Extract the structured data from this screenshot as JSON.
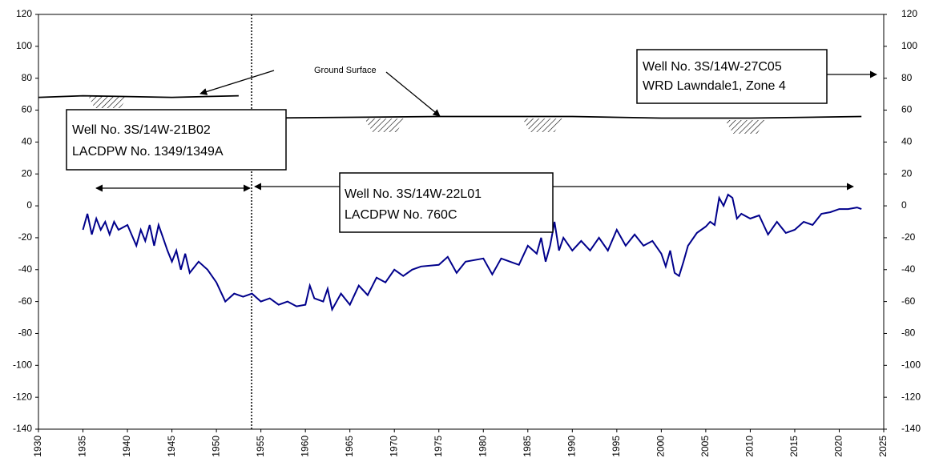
{
  "chart_data": {
    "type": "line",
    "xlim": [
      1930,
      2025
    ],
    "xticks": [
      1930,
      1935,
      1940,
      1945,
      1950,
      1955,
      1960,
      1965,
      1970,
      1975,
      1980,
      1985,
      1990,
      1995,
      2000,
      2005,
      2010,
      2015,
      2020,
      2025
    ],
    "ylim": [
      -140,
      120
    ],
    "yticks": [
      -140,
      -120,
      -100,
      -80,
      -60,
      -40,
      -20,
      0,
      20,
      40,
      60,
      80,
      100,
      120
    ],
    "y2lim": [
      -140,
      120
    ],
    "y2ticks": [
      -140,
      -120,
      -100,
      -80,
      -60,
      -40,
      -20,
      0,
      20,
      40,
      60,
      80,
      100,
      120
    ],
    "grid": false,
    "series": [
      {
        "color": "#00008b",
        "x": [
          1935,
          1935.5,
          1936,
          1936.5,
          1937,
          1937.5,
          1938,
          1938.5,
          1939,
          1940,
          1941,
          1941.5,
          1942,
          1942.5,
          1943,
          1943.5,
          1944,
          1944.5,
          1945,
          1945.5,
          1946,
          1946.5,
          1947,
          1948,
          1949,
          1950,
          1951,
          1952,
          1953,
          1954,
          1955,
          1956,
          1957,
          1958,
          1959,
          1960,
          1960.5,
          1961,
          1962,
          1962.5,
          1963,
          1964,
          1965,
          1966,
          1967,
          1968,
          1969,
          1970,
          1971,
          1972,
          1973,
          1975,
          1976,
          1977,
          1978,
          1980,
          1981,
          1982,
          1983,
          1984,
          1985,
          1986,
          1986.5,
          1987,
          1987.5,
          1988,
          1988.5,
          1989,
          1990,
          1991,
          1992,
          1993,
          1994,
          1995,
          1996,
          1997,
          1998,
          1999,
          2000,
          2000.5,
          2001,
          2001.5,
          2002,
          2002.5,
          2003,
          2004,
          2005,
          2005.5,
          2006,
          2006.5,
          2007,
          2007.5,
          2008,
          2008.5,
          2009,
          2010,
          2011,
          2012,
          2013,
          2014,
          2015,
          2016,
          2017,
          2018,
          2019,
          2020,
          2021,
          2022,
          2022.5
        ],
        "values": [
          -15,
          -5,
          -18,
          -8,
          -15,
          -10,
          -18,
          -10,
          -15,
          -12,
          -25,
          -15,
          -22,
          -12,
          -25,
          -12,
          -20,
          -28,
          -35,
          -28,
          -40,
          -30,
          -42,
          -35,
          -40,
          -48,
          -60,
          -55,
          -57,
          -55,
          -60,
          -58,
          -62,
          -60,
          -63,
          -62,
          -50,
          -58,
          -60,
          -52,
          -65,
          -55,
          -62,
          -50,
          -56,
          -45,
          -48,
          -40,
          -44,
          -40,
          -38,
          -37,
          -32,
          -42,
          -35,
          -33,
          -43,
          -33,
          -35,
          -37,
          -25,
          -30,
          -20,
          -35,
          -25,
          -10,
          -28,
          -20,
          -28,
          -22,
          -28,
          -20,
          -28,
          -15,
          -25,
          -18,
          -25,
          -22,
          -30,
          -38,
          -28,
          -42,
          -44,
          -35,
          -25,
          -17,
          -13,
          -10,
          -12,
          5,
          0,
          7,
          5,
          -8,
          -5,
          -8,
          -6,
          -18,
          -10,
          -17,
          -15,
          -10,
          -12,
          -5,
          -4,
          -2,
          -2,
          -1,
          -2
        ]
      },
      {
        "name": "Ground Surface",
        "color": "#000000",
        "x": [
          1930,
          1935,
          1945,
          1952.5,
          1953.5,
          1955,
          1975,
          1990,
          2000,
          2010,
          2022.5
        ],
        "values": [
          68,
          69,
          68,
          69,
          null,
          55,
          56,
          56,
          55,
          55,
          56
        ]
      }
    ],
    "annotations": [
      [
        "Well No. 3S/14W-21B02",
        "LACDPW No. 1349/1349A"
      ],
      [
        "Well No. 3S/14W-22L01",
        "LACDPW No. 760C"
      ],
      [
        "Well No. 3S/14W-27C05",
        "WRD Lawndale1,  Zone  4"
      ]
    ]
  }
}
